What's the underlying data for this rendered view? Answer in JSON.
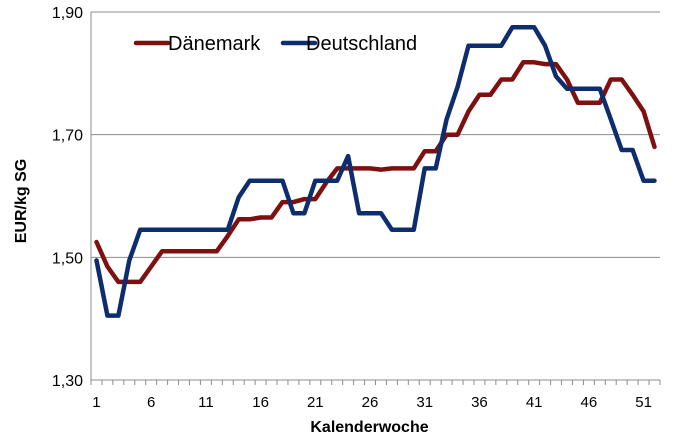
{
  "chart_data": {
    "type": "line",
    "xlabel": "Kalenderwoche",
    "ylabel": "EUR/kg SG",
    "xlim": [
      1,
      52
    ],
    "ylim": [
      1.3,
      1.9
    ],
    "x_ticks": [
      1,
      6,
      11,
      16,
      21,
      26,
      31,
      36,
      41,
      46,
      51
    ],
    "y_ticks": [
      1.3,
      1.5,
      1.7,
      1.9
    ],
    "y_tick_labels": [
      "1,30",
      "1,50",
      "1,70",
      "1,90"
    ],
    "grid": "horizontal",
    "legend_position": "top-left",
    "x": [
      1,
      2,
      3,
      4,
      5,
      6,
      7,
      8,
      9,
      10,
      11,
      12,
      13,
      14,
      15,
      16,
      17,
      18,
      19,
      20,
      21,
      22,
      23,
      24,
      25,
      26,
      27,
      28,
      29,
      30,
      31,
      32,
      33,
      34,
      35,
      36,
      37,
      38,
      39,
      40,
      41,
      42,
      43,
      44,
      45,
      46,
      47,
      48,
      49,
      50,
      51,
      52
    ],
    "series": [
      {
        "name": "Dänemark",
        "color": "#7f1010",
        "values": [
          1.525,
          1.485,
          1.46,
          1.46,
          1.46,
          1.485,
          1.51,
          1.51,
          1.51,
          1.51,
          1.51,
          1.51,
          1.535,
          1.562,
          1.562,
          1.565,
          1.565,
          1.59,
          1.59,
          1.595,
          1.595,
          1.622,
          1.645,
          1.645,
          1.645,
          1.645,
          1.643,
          1.645,
          1.645,
          1.645,
          1.673,
          1.673,
          1.7,
          1.7,
          1.738,
          1.765,
          1.765,
          1.79,
          1.79,
          1.818,
          1.818,
          1.815,
          1.815,
          1.79,
          1.752,
          1.752,
          1.752,
          1.79,
          1.79,
          1.765,
          1.738,
          1.68
        ]
      },
      {
        "name": "Deutschland",
        "color": "#0d2d6e",
        "values": [
          1.495,
          1.405,
          1.405,
          1.495,
          1.545,
          1.545,
          1.545,
          1.545,
          1.545,
          1.545,
          1.545,
          1.545,
          1.545,
          1.598,
          1.625,
          1.625,
          1.625,
          1.625,
          1.572,
          1.572,
          1.625,
          1.625,
          1.625,
          1.665,
          1.572,
          1.572,
          1.572,
          1.545,
          1.545,
          1.545,
          1.645,
          1.645,
          1.725,
          1.778,
          1.845,
          1.845,
          1.845,
          1.845,
          1.875,
          1.875,
          1.875,
          1.845,
          1.795,
          1.775,
          1.775,
          1.775,
          1.775,
          1.725,
          1.675,
          1.675,
          1.625,
          1.625
        ]
      }
    ]
  }
}
